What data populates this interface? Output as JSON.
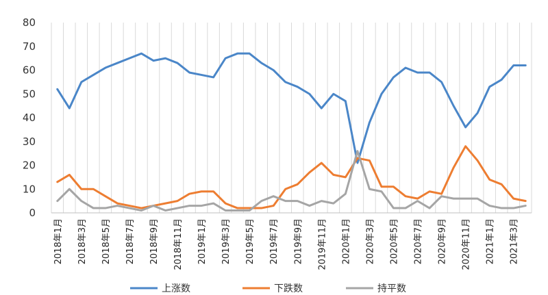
{
  "chart_data": {
    "type": "line",
    "title": "",
    "xlabel": "",
    "ylabel": "",
    "ylim": [
      0,
      80
    ],
    "yticks": [
      0,
      10,
      20,
      30,
      40,
      50,
      60,
      70,
      80
    ],
    "grid": "vertical",
    "legend_position": "bottom",
    "x": [
      "2018年1月",
      "2018年2月",
      "2018年3月",
      "2018年4月",
      "2018年5月",
      "2018年6月",
      "2018年7月",
      "2018年8月",
      "2018年9月",
      "2018年10月",
      "2018年11月",
      "2018年12月",
      "2019年1月",
      "2019年2月",
      "2019年3月",
      "2019年4月",
      "2019年5月",
      "2019年6月",
      "2019年7月",
      "2019年8月",
      "2019年9月",
      "2019年10月",
      "2019年11月",
      "2019年12月",
      "2020年1月",
      "2020年2月",
      "2020年3月",
      "2020年4月",
      "2020年5月",
      "2020年6月",
      "2020年7月",
      "2020年8月",
      "2020年9月",
      "2020年10月",
      "2020年11月",
      "2020年12月",
      "2021年1月",
      "2021年2月",
      "2021年3月",
      "2021年4月"
    ],
    "x_tick_labels": [
      "2018年1月",
      "2018年3月",
      "2018年5月",
      "2018年7月",
      "2018年9月",
      "2018年11月",
      "2019年1月",
      "2019年3月",
      "2019年5月",
      "2019年7月",
      "2019年9月",
      "2019年11月",
      "2020年1月",
      "2020年3月",
      "2020年5月",
      "2020年7月",
      "2020年9月",
      "2020年11月",
      "2021年1月",
      "2021年3月"
    ],
    "series": [
      {
        "name": "上涨数",
        "color": "#4a86c8",
        "values": [
          52,
          44,
          55,
          58,
          61,
          63,
          65,
          67,
          64,
          65,
          63,
          59,
          58,
          57,
          65,
          67,
          67,
          63,
          60,
          55,
          53,
          50,
          44,
          50,
          47,
          21,
          38,
          50,
          57,
          61,
          59,
          59,
          55,
          45,
          36,
          42,
          53,
          56,
          62,
          62
        ]
      },
      {
        "name": "下跌数",
        "color": "#ed7d31",
        "values": [
          13,
          16,
          10,
          10,
          7,
          4,
          3,
          2,
          3,
          4,
          5,
          8,
          9,
          9,
          4,
          2,
          2,
          2,
          3,
          10,
          12,
          17,
          21,
          16,
          15,
          23,
          22,
          11,
          11,
          7,
          6,
          9,
          8,
          19,
          28,
          22,
          14,
          12,
          6,
          5
        ]
      },
      {
        "name": "持平数",
        "color": "#a5a5a5",
        "values": [
          5,
          10,
          5,
          2,
          2,
          3,
          2,
          1,
          3,
          1,
          2,
          3,
          3,
          4,
          1,
          1,
          1,
          5,
          7,
          5,
          5,
          3,
          5,
          4,
          8,
          26,
          10,
          9,
          2,
          2,
          5,
          2,
          7,
          6,
          6,
          6,
          3,
          2,
          2,
          3
        ]
      }
    ]
  }
}
